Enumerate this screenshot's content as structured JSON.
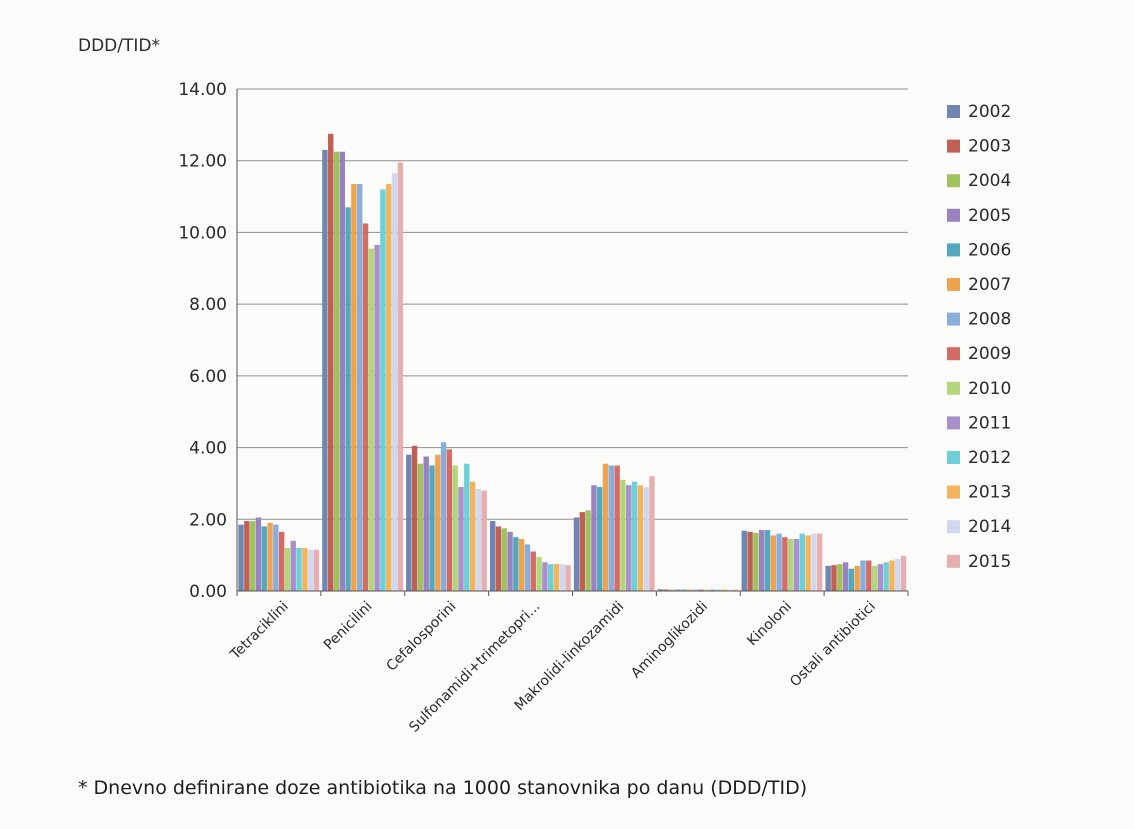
{
  "chart_data": {
    "type": "bar",
    "ylabel": "DDD/TID*",
    "ylim": [
      0,
      14
    ],
    "yticks": [
      "0.00",
      "2.00",
      "4.00",
      "6.00",
      "8.00",
      "10.00",
      "12.00",
      "14.00"
    ],
    "grid": true,
    "legend_position": "right",
    "categories": [
      "Tetraciklini",
      "Penicilini",
      "Cefalosporini",
      "Sulfonamidi+trimetopri...",
      "Makrolidi-linkozamidi",
      "Aminoglikozidi",
      "Kinoloni",
      "Ostali antibiotici"
    ],
    "series": [
      {
        "name": "2002",
        "color": "#6f86b2",
        "values": [
          1.85,
          12.3,
          3.8,
          1.95,
          2.05,
          0.05,
          1.68,
          0.7
        ]
      },
      {
        "name": "2003",
        "color": "#c06055",
        "values": [
          1.95,
          12.75,
          4.05,
          1.8,
          2.2,
          0.04,
          1.65,
          0.72
        ]
      },
      {
        "name": "2004",
        "color": "#9fc25c",
        "values": [
          1.95,
          12.25,
          3.55,
          1.75,
          2.25,
          0.04,
          1.62,
          0.75
        ]
      },
      {
        "name": "2005",
        "color": "#9a82c0",
        "values": [
          2.05,
          12.25,
          3.75,
          1.65,
          2.95,
          0.04,
          1.7,
          0.8
        ]
      },
      {
        "name": "2006",
        "color": "#52a9be",
        "values": [
          1.8,
          10.7,
          3.5,
          1.5,
          2.9,
          0.04,
          1.7,
          0.62
        ]
      },
      {
        "name": "2007",
        "color": "#f0a24c",
        "values": [
          1.9,
          11.35,
          3.8,
          1.45,
          3.55,
          0.04,
          1.55,
          0.7
        ]
      },
      {
        "name": "2008",
        "color": "#8aaedc",
        "values": [
          1.85,
          11.35,
          4.15,
          1.3,
          3.5,
          0.04,
          1.6,
          0.85
        ]
      },
      {
        "name": "2009",
        "color": "#d56b66",
        "values": [
          1.65,
          10.25,
          3.95,
          1.1,
          3.5,
          0.04,
          1.5,
          0.85
        ]
      },
      {
        "name": "2010",
        "color": "#b3d57c",
        "values": [
          1.2,
          9.55,
          3.5,
          0.95,
          3.1,
          0.04,
          1.45,
          0.7
        ]
      },
      {
        "name": "2011",
        "color": "#a98fcc",
        "values": [
          1.4,
          9.65,
          2.9,
          0.8,
          2.95,
          0.04,
          1.45,
          0.75
        ]
      },
      {
        "name": "2012",
        "color": "#6fcfd8",
        "values": [
          1.2,
          11.2,
          3.55,
          0.75,
          3.05,
          0.04,
          1.6,
          0.8
        ]
      },
      {
        "name": "2013",
        "color": "#f3b45c",
        "values": [
          1.2,
          11.35,
          3.05,
          0.75,
          2.95,
          0.04,
          1.55,
          0.85
        ]
      },
      {
        "name": "2014",
        "color": "#cfd8ee",
        "values": [
          1.15,
          11.65,
          2.85,
          0.75,
          2.9,
          0.04,
          1.6,
          0.9
        ]
      },
      {
        "name": "2015",
        "color": "#e6aeae",
        "values": [
          1.15,
          11.95,
          2.8,
          0.72,
          3.2,
          0.04,
          1.6,
          0.98
        ]
      }
    ]
  },
  "footnote": "* Dnevno definirane doze antibiotika na 1000 stanovnika po danu (DDD/TID)"
}
